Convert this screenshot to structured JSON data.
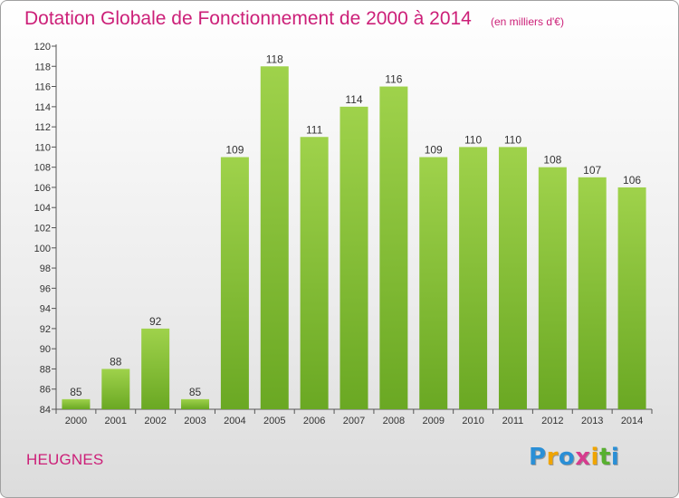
{
  "title": "Dotation Globale de Fonctionnement de 2000 à 2014",
  "subtitle": "(en milliers d'€)",
  "town": "HEUGNES",
  "logo": {
    "letters": [
      "P",
      "r",
      "o",
      "x",
      "i",
      "t",
      "i"
    ],
    "colors": [
      "#2a8fd6",
      "#f0a500",
      "#2a8fd6",
      "#d63c8e",
      "#f0a500",
      "#58b030",
      "#2a8fd6"
    ]
  },
  "colors": {
    "bar_light": "#9fd24b",
    "bar_dark": "#6aa823",
    "text_accent": "#cc1f78"
  },
  "chart_data": {
    "type": "bar",
    "categories": [
      "2000",
      "2001",
      "2002",
      "2003",
      "2004",
      "2005",
      "2006",
      "2007",
      "2008",
      "2009",
      "2010",
      "2011",
      "2012",
      "2013",
      "2014"
    ],
    "values": [
      85,
      88,
      92,
      85,
      109,
      118,
      111,
      114,
      116,
      109,
      110,
      110,
      108,
      107,
      106
    ],
    "ylim": [
      84,
      120
    ],
    "ytick_step": 2,
    "grid": false
  }
}
